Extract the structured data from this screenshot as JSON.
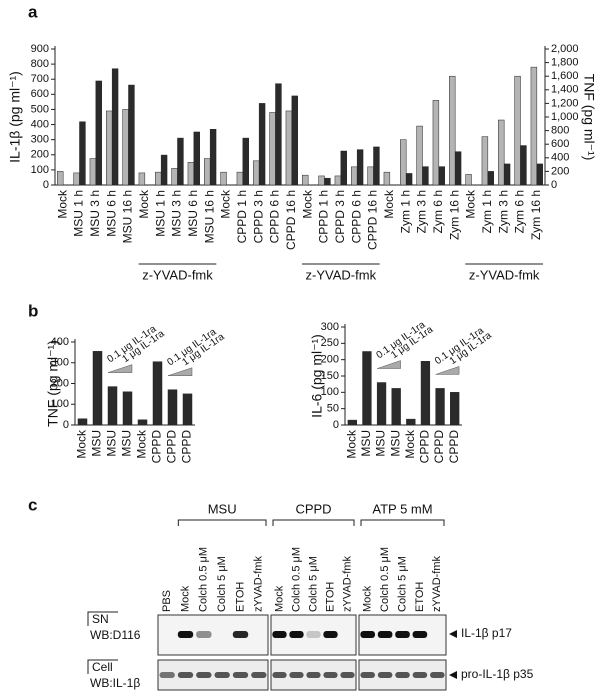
{
  "chart_data": [
    {
      "type": "bar",
      "panel_label": "a",
      "y_label": "IL-1β (pg ml⁻¹)",
      "y2_label": "TNF (pg ml⁻¹)",
      "categories": [
        "Mock",
        "MSU 1 h",
        "MSU 3 h",
        "MSU 6 h",
        "MSU 16 h",
        "Mock",
        "MSU 1 h",
        "MSU 3 h",
        "MSU 6 h",
        "MSU 16 h",
        "Mock",
        "CPPD 1 h",
        "CPPD 3 h",
        "CPPD 6 h",
        "CPPD 16 h",
        "Mock",
        "CPPD 1 h",
        "CPPD 3 h",
        "CPPD 6 h",
        "CPPD 16 h",
        "Mock",
        "Zym 1 h",
        "Zym 3 h",
        "Zym 6 h",
        "Zym 16 h",
        "Mock",
        "Zym 1 h",
        "Zym 3 h",
        "Zym 6 h",
        "Zym 16 h"
      ],
      "group_labels": [
        "z-YVAD-fmk",
        "z-YVAD-fmk",
        "z-YVAD-fmk"
      ],
      "series": [
        {
          "color": "#b4b4b4",
          "values": [
            90,
            80,
            175,
            490,
            500,
            80,
            85,
            110,
            150,
            175,
            85,
            85,
            160,
            480,
            490,
            65,
            60,
            60,
            120,
            120,
            85,
            300,
            390,
            560,
            720,
            70,
            320,
            430,
            720,
            780
          ]
        },
        {
          "color": "#2b2b2b",
          "axis": "y2",
          "values": [
            0,
            930,
            1530,
            1710,
            1470,
            0,
            440,
            690,
            780,
            820,
            0,
            690,
            1200,
            1490,
            1310,
            0,
            100,
            500,
            520,
            560,
            0,
            170,
            270,
            270,
            490,
            0,
            200,
            310,
            580,
            310
          ]
        }
      ],
      "ylim": [
        0,
        900
      ],
      "yticks": [
        0,
        100,
        200,
        300,
        400,
        500,
        600,
        700,
        800,
        900
      ],
      "y2lim": [
        0,
        2000
      ],
      "y2ticks": [
        0,
        200,
        400,
        600,
        800,
        {
          "value": 1000,
          "label": "1,000"
        },
        {
          "value": 1200,
          "label": "1,200"
        },
        {
          "value": 1400,
          "label": "1,400"
        },
        {
          "value": 1600,
          "label": "1,600"
        },
        {
          "value": 1800,
          "label": "1,800"
        },
        {
          "value": 2000,
          "label": "2,000"
        }
      ]
    },
    {
      "type": "bar",
      "panel_label": "b",
      "y_label": "TNF (pg ml⁻¹)",
      "categories": [
        "Mock",
        "MSU",
        "MSU",
        "MSU",
        "Mock",
        "CPPD",
        "CPPD",
        "CPPD"
      ],
      "values": [
        30,
        355,
        185,
        160,
        25,
        305,
        170,
        150
      ],
      "color": "#2b2b2b",
      "annotations": [
        "0.1 μg IL-1ra",
        "1 μg IL-1ra",
        "0.1 μg IL-1ra",
        "1 μg IL-1ra"
      ],
      "ylim": [
        0,
        400
      ],
      "yticks": [
        0,
        100,
        200,
        300,
        400
      ]
    },
    {
      "type": "bar",
      "y_label": "IL-6 (pg ml⁻¹)",
      "categories": [
        "Mock",
        "MSU",
        "MSU",
        "MSU",
        "Mock",
        "CPPD",
        "CPPD",
        "CPPD"
      ],
      "values": [
        15,
        225,
        130,
        112,
        18,
        195,
        112,
        100
      ],
      "color": "#2b2b2b",
      "annotations": [
        "0.1 μg IL-1ra",
        "1 μg IL-1ra",
        "0.1 μg IL-1ra",
        "1 μg IL-1ra"
      ],
      "ylim": [
        0,
        300
      ],
      "yticks": [
        0,
        50,
        100,
        150,
        200,
        250,
        300
      ]
    }
  ],
  "blot": {
    "panel_label": "c",
    "groups": [
      "MSU",
      "CPPD",
      "ATP 5 mM"
    ],
    "lanes": [
      [
        "PBS",
        "Mock",
        "Colch 0.5 μM",
        "Colch 5 μM",
        "ETOH",
        "zYVAD-fmk"
      ],
      [
        "Mock",
        "Colch 0.5 μM",
        "Colch 5 μM",
        "ETOH",
        "zYVAD-fmk"
      ],
      [
        "Mock",
        "Colch 0.5 μM",
        "Colch 5 μM",
        "ETOH",
        "zYVAD-fmk"
      ]
    ],
    "rows": [
      {
        "section": "SN",
        "antibody": "WB:D116",
        "band": "IL-1β p17"
      },
      {
        "section": "Cell",
        "antibody": "WB:IL-1β",
        "band": "pro-IL-1β p35"
      }
    ]
  }
}
